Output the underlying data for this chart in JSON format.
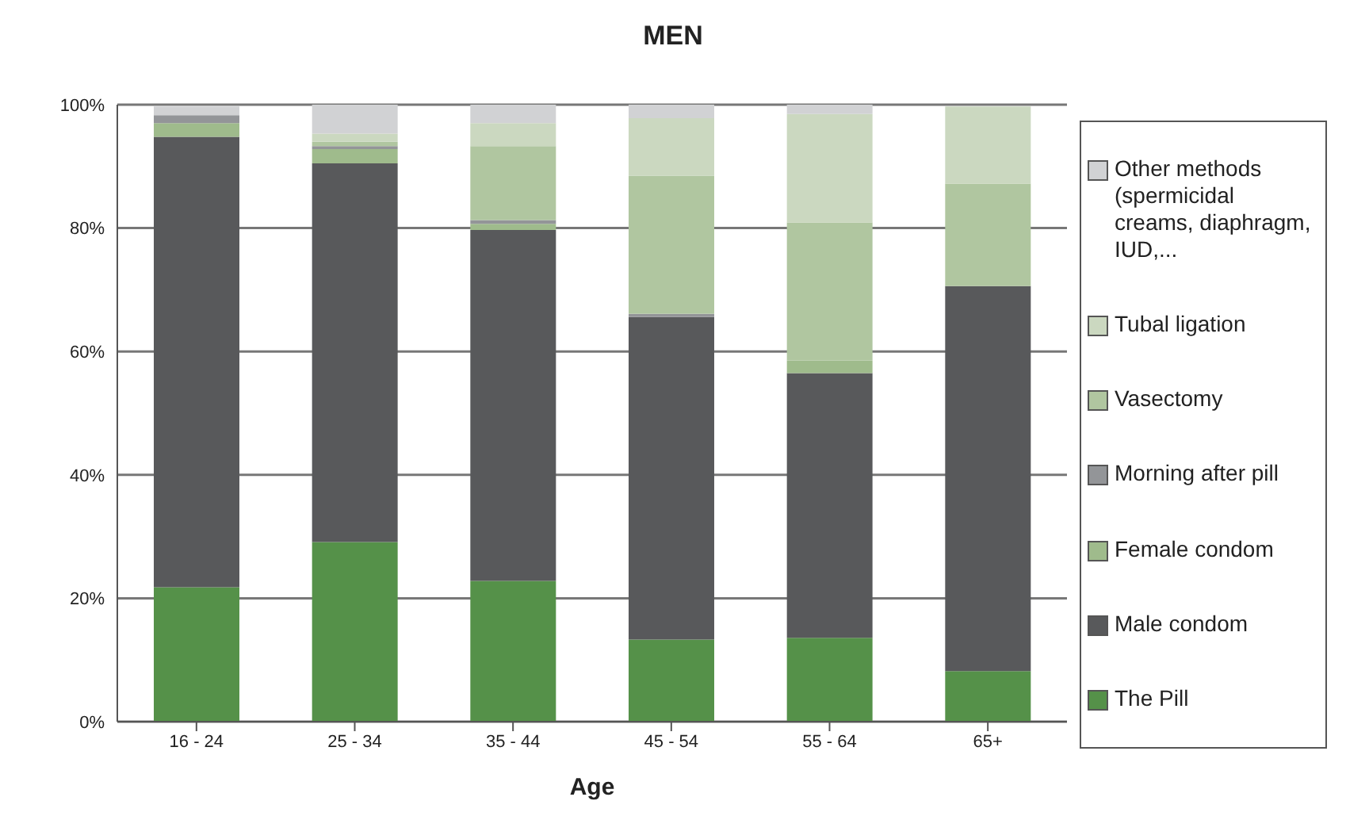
{
  "chart_data": {
    "type": "bar",
    "title": "MEN",
    "xlabel": "Age",
    "stacked": true,
    "grid": "y",
    "legend": "right",
    "categories": [
      "16 - 24",
      "25 - 34",
      "35 - 44",
      "45 - 54",
      "55 - 64",
      "65+"
    ],
    "ylim": [
      0,
      100
    ],
    "yticks": [
      {
        "value": 0,
        "label": "0%"
      },
      {
        "value": 20,
        "label": "20%"
      },
      {
        "value": 40,
        "label": "40%"
      },
      {
        "value": 60,
        "label": "60%"
      },
      {
        "value": 80,
        "label": "80%"
      },
      {
        "value": 100,
        "label": "100%"
      }
    ],
    "series": [
      {
        "name": "The Pill",
        "color": "#559149",
        "values": [
          21.8,
          29.1,
          22.8,
          13.3,
          13.6,
          8.2
        ]
      },
      {
        "name": "Male condom",
        "color": "#58595b",
        "values": [
          73.0,
          61.4,
          56.9,
          52.3,
          42.9,
          62.4
        ]
      },
      {
        "name": "Female condom",
        "color": "#9fbb8c",
        "values": [
          2.2,
          2.3,
          1.0,
          0,
          2.0,
          0
        ]
      },
      {
        "name": "Morning after pill",
        "color": "#939598",
        "values": [
          1.3,
          0.5,
          0.6,
          0.5,
          0,
          0
        ]
      },
      {
        "name": "Vasectomy",
        "color": "#b0c6a0",
        "values": [
          0,
          0.7,
          12.0,
          22.4,
          22.4,
          16.6
        ]
      },
      {
        "name": "Tubal ligation",
        "color": "#cbd8c0",
        "values": [
          0,
          1.3,
          3.7,
          9.3,
          17.6,
          12.5
        ]
      },
      {
        "name": "Other methods (spermicidal creams, diaphragm, IUD,...",
        "color": "#d1d2d4",
        "values": [
          1.4,
          4.7,
          3.0,
          2.2,
          1.5,
          0
        ]
      }
    ]
  }
}
